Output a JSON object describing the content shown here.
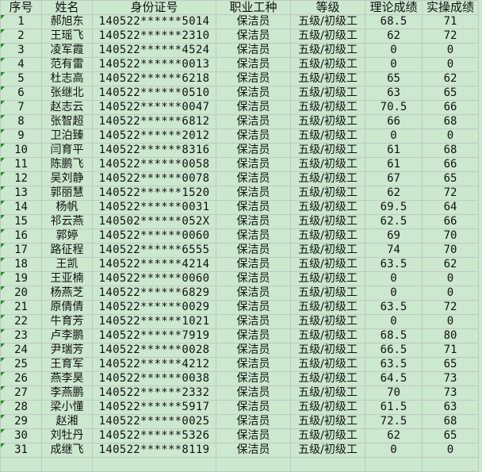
{
  "headers": [
    "序号",
    "姓名",
    "身份证号",
    "职业工种",
    "等级",
    "理论成绩",
    "实操成绩"
  ],
  "rows": [
    [
      "1",
      "郝旭东",
      "140522******5014",
      "保洁员",
      "五级/初级工",
      "68.5",
      "71"
    ],
    [
      "2",
      "王瑶飞",
      "140522******2310",
      "保洁员",
      "五级/初级工",
      "62",
      "72"
    ],
    [
      "3",
      "凌军霞",
      "140522******4524",
      "保洁员",
      "五级/初级工",
      "0",
      "0"
    ],
    [
      "4",
      "范有雷",
      "140522******0013",
      "保洁员",
      "五级/初级工",
      "0",
      "0"
    ],
    [
      "5",
      "杜志高",
      "140522******6218",
      "保洁员",
      "五级/初级工",
      "65",
      "62"
    ],
    [
      "6",
      "张继北",
      "140522******0510",
      "保洁员",
      "五级/初级工",
      "63",
      "65"
    ],
    [
      "7",
      "赵志云",
      "140522******0047",
      "保洁员",
      "五级/初级工",
      "70.5",
      "66"
    ],
    [
      "8",
      "张智超",
      "140522******6812",
      "保洁员",
      "五级/初级工",
      "66",
      "68"
    ],
    [
      "9",
      "卫泊臻",
      "140522******2012",
      "保洁员",
      "五级/初级工",
      "0",
      "0"
    ],
    [
      "10",
      "闫育平",
      "140522******8316",
      "保洁员",
      "五级/初级工",
      "61",
      "68"
    ],
    [
      "11",
      "陈鹏飞",
      "140522******0058",
      "保洁员",
      "五级/初级工",
      "61",
      "66"
    ],
    [
      "12",
      "吴刘静",
      "140522******0078",
      "保洁员",
      "五级/初级工",
      "67",
      "65"
    ],
    [
      "13",
      "郭丽慧",
      "140522******1520",
      "保洁员",
      "五级/初级工",
      "62",
      "72"
    ],
    [
      "14",
      "杨帆",
      "140522******0031",
      "保洁员",
      "五级/初级工",
      "69.5",
      "64"
    ],
    [
      "15",
      "祁云燕",
      "140502******052X",
      "保洁员",
      "五级/初级工",
      "62.5",
      "66"
    ],
    [
      "16",
      "郭婷",
      "140522******0060",
      "保洁员",
      "五级/初级工",
      "69",
      "70"
    ],
    [
      "17",
      "路征程",
      "140522******6555",
      "保洁员",
      "五级/初级工",
      "74",
      "70"
    ],
    [
      "18",
      "王凯",
      "140522******4214",
      "保洁员",
      "五级/初级工",
      "63.5",
      "62"
    ],
    [
      "19",
      "王亚楠",
      "140522******0060",
      "保洁员",
      "五级/初级工",
      "0",
      "0"
    ],
    [
      "20",
      "杨燕芝",
      "140522******6829",
      "保洁员",
      "五级/初级工",
      "0",
      "0"
    ],
    [
      "21",
      "原倩倩",
      "140522******0029",
      "保洁员",
      "五级/初级工",
      "63.5",
      "72"
    ],
    [
      "22",
      "牛育芳",
      "140522******1021",
      "保洁员",
      "五级/初级工",
      "0",
      "0"
    ],
    [
      "23",
      "卢李鹏",
      "140522******7919",
      "保洁员",
      "五级/初级工",
      "68.5",
      "80"
    ],
    [
      "24",
      "尹瑞芳",
      "140522******0028",
      "保洁员",
      "五级/初级工",
      "66.5",
      "71"
    ],
    [
      "25",
      "王育军",
      "140522******4212",
      "保洁员",
      "五级/初级工",
      "63.5",
      "65"
    ],
    [
      "26",
      "燕李昊",
      "140522******0038",
      "保洁员",
      "五级/初级工",
      "64.5",
      "73"
    ],
    [
      "27",
      "李燕鹏",
      "140522******2332",
      "保洁员",
      "五级/初级工",
      "70",
      "73"
    ],
    [
      "28",
      "梁小懂",
      "140522******5917",
      "保洁员",
      "五级/初级工",
      "61.5",
      "63"
    ],
    [
      "29",
      "赵湘",
      "140522******0025",
      "保洁员",
      "五级/初级工",
      "72.5",
      "68"
    ],
    [
      "30",
      "刘牡丹",
      "140522******5326",
      "保洁员",
      "五级/初级工",
      "62",
      "65"
    ],
    [
      "31",
      "成继飞",
      "140522******8119",
      "保洁员",
      "五级/初级工",
      "0",
      "0"
    ]
  ],
  "colors": {
    "background": "#cce8cf",
    "grid": "#bfc9c0",
    "marker": "#1e8a1e"
  }
}
